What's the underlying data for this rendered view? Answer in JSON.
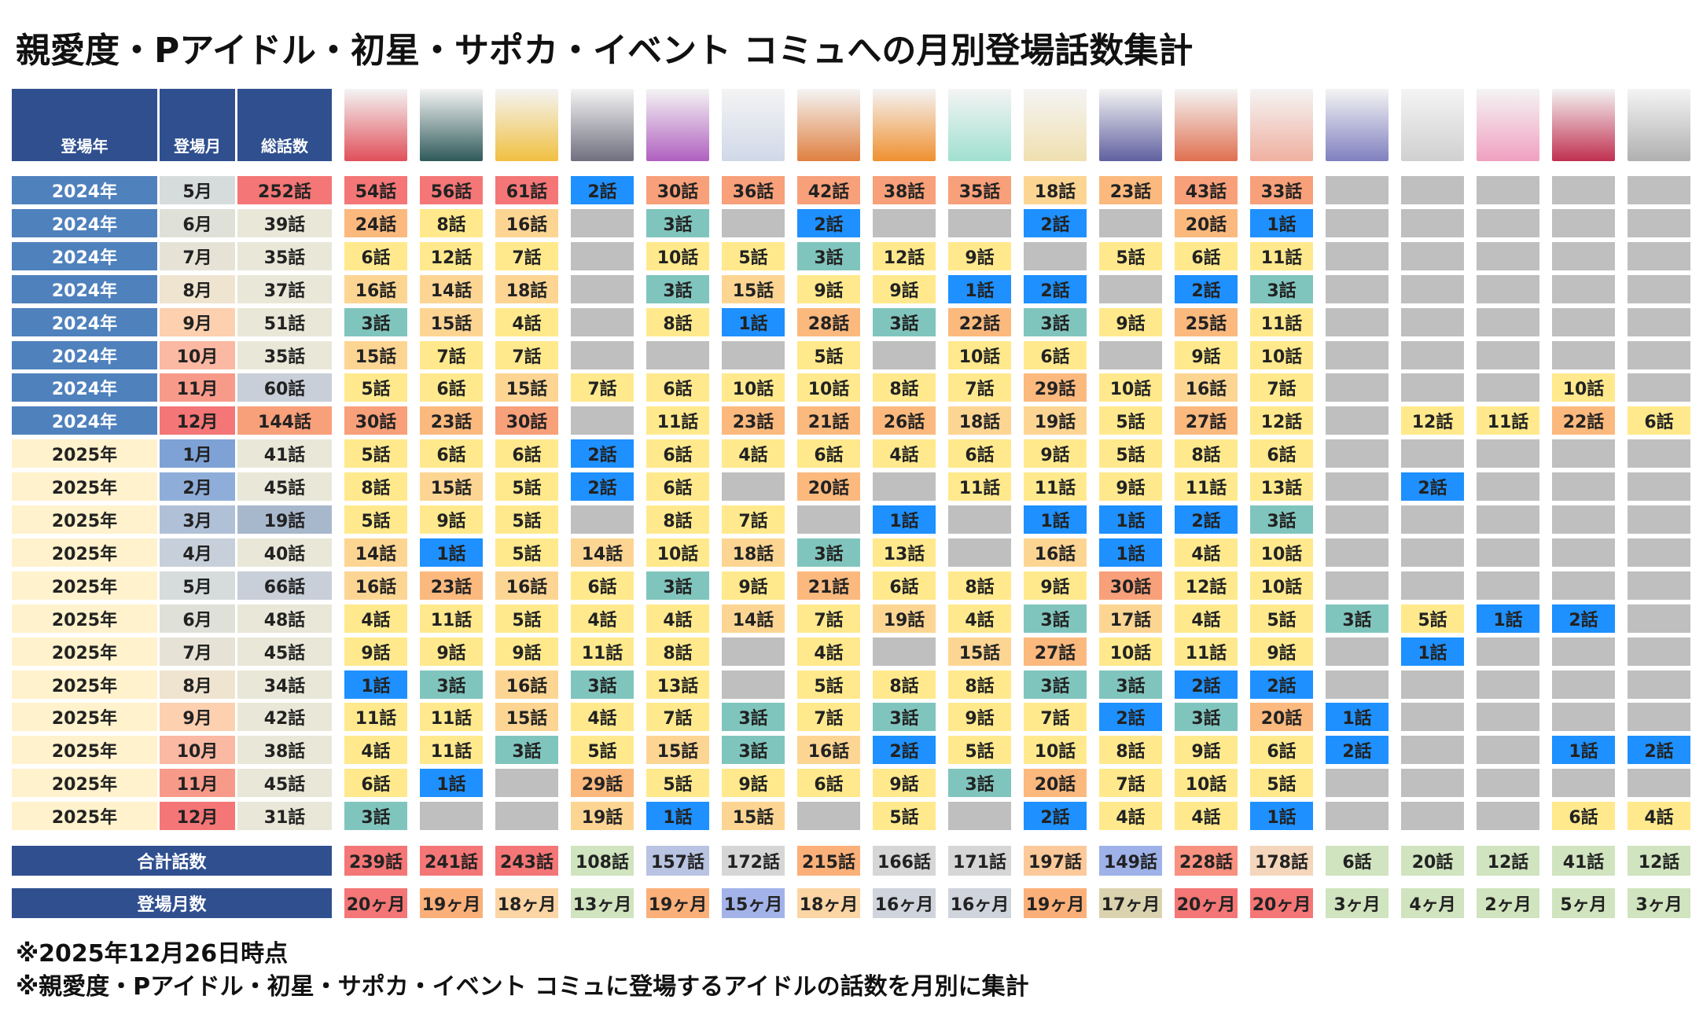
{
  "header": {
    "title": "親愛度・Pアイドル・初星・サポカ・イベント コミュへの月別登場話数集計"
  },
  "table": {
    "columns": [
      "登場年",
      "登場月",
      "総話数"
    ],
    "rows": [
      [
        "2024年",
        "5月",
        "252話",
        [
          "54話",
          "56話",
          "61話",
          "2話",
          "30話",
          "36話",
          "42話",
          "38話",
          "35話",
          "18話",
          "23話",
          "43話",
          "33話",
          null,
          null,
          null,
          null,
          null
        ]
      ],
      [
        "2024年",
        "6月",
        "39話",
        [
          "24話",
          "8話",
          "16話",
          null,
          "3話",
          null,
          "2話",
          null,
          null,
          "2話",
          null,
          "20話",
          "1話",
          null,
          null,
          null,
          null,
          null
        ]
      ],
      [
        "2024年",
        "7月",
        "35話",
        [
          "6話",
          "12話",
          "7話",
          null,
          "10話",
          "5話",
          "3話",
          "12話",
          "9話",
          null,
          "5話",
          "6話",
          "11話",
          null,
          null,
          null,
          null,
          null
        ]
      ],
      [
        "2024年",
        "8月",
        "37話",
        [
          "16話",
          "14話",
          "18話",
          null,
          "3話",
          "15話",
          "9話",
          "9話",
          "1話",
          "2話",
          null,
          "2話",
          "3話",
          null,
          null,
          null,
          null,
          null
        ]
      ],
      [
        "2024年",
        "9月",
        "51話",
        [
          "3話",
          "15話",
          "4話",
          null,
          "8話",
          "1話",
          "28話",
          "3話",
          "22話",
          "3話",
          "9話",
          "25話",
          "11話",
          null,
          null,
          null,
          null,
          null
        ]
      ],
      [
        "2024年",
        "10月",
        "35話",
        [
          "15話",
          "7話",
          "7話",
          null,
          null,
          null,
          "5話",
          null,
          "10話",
          "6話",
          null,
          "9話",
          "10話",
          null,
          null,
          null,
          null,
          null
        ]
      ],
      [
        "2024年",
        "11月",
        "60話",
        [
          "5話",
          "6話",
          "15話",
          "7話",
          "6話",
          "10話",
          "10話",
          "8話",
          "7話",
          "29話",
          "10話",
          "16話",
          "7話",
          null,
          null,
          null,
          "10話",
          null
        ]
      ],
      [
        "2024年",
        "12月",
        "144話",
        [
          "30話",
          "23話",
          "30話",
          null,
          "11話",
          "23話",
          "21話",
          "26話",
          "18話",
          "19話",
          "5話",
          "27話",
          "12話",
          null,
          "12話",
          "11話",
          "22話",
          "6話"
        ]
      ],
      [
        "2025年",
        "1月",
        "41話",
        [
          "5話",
          "6話",
          "6話",
          "2話",
          "6話",
          "4話",
          "6話",
          "4話",
          "6話",
          "9話",
          "5話",
          "8話",
          "6話",
          null,
          null,
          null,
          null,
          null
        ]
      ],
      [
        "2025年",
        "2月",
        "45話",
        [
          "8話",
          "15話",
          "5話",
          "2話",
          "6話",
          null,
          "20話",
          null,
          "11話",
          "11話",
          "9話",
          "11話",
          "13話",
          null,
          "2話",
          null,
          null,
          null
        ]
      ],
      [
        "2025年",
        "3月",
        "19話",
        [
          "5話",
          "9話",
          "5話",
          null,
          "8話",
          "7話",
          null,
          "1話",
          null,
          "1話",
          "1話",
          "2話",
          "3話",
          null,
          null,
          null,
          null,
          null
        ]
      ],
      [
        "2025年",
        "4月",
        "40話",
        [
          "14話",
          "1話",
          "5話",
          "14話",
          "10話",
          "18話",
          "3話",
          "13話",
          null,
          "16話",
          "1話",
          "4話",
          "10話",
          null,
          null,
          null,
          null,
          null
        ]
      ],
      [
        "2025年",
        "5月",
        "66話",
        [
          "16話",
          "23話",
          "16話",
          "6話",
          "3話",
          "9話",
          "21話",
          "6話",
          "8話",
          "9話",
          "30話",
          "12話",
          "10話",
          null,
          null,
          null,
          null,
          null
        ]
      ],
      [
        "2025年",
        "6月",
        "48話",
        [
          "4話",
          "11話",
          "5話",
          "4話",
          "4話",
          "14話",
          "7話",
          "19話",
          "4話",
          "3話",
          "17話",
          "4話",
          "5話",
          "3話",
          "5話",
          "1話",
          "2話",
          null
        ]
      ],
      [
        "2025年",
        "7月",
        "45話",
        [
          "9話",
          "9話",
          "9話",
          "11話",
          "8話",
          null,
          "4話",
          null,
          "15話",
          "27話",
          "10話",
          "11話",
          "9話",
          null,
          "1話",
          null,
          null,
          null
        ]
      ],
      [
        "2025年",
        "8月",
        "34話",
        [
          "1話",
          "3話",
          "16話",
          "3話",
          "13話",
          null,
          "5話",
          "8話",
          "8話",
          "3話",
          "3話",
          "2話",
          "2話",
          null,
          null,
          null,
          null,
          null
        ]
      ],
      [
        "2025年",
        "9月",
        "42話",
        [
          "11話",
          "11話",
          "15話",
          "4話",
          "7話",
          "3話",
          "7話",
          "3話",
          "9話",
          "7話",
          "2話",
          "3話",
          "20話",
          "1話",
          null,
          null,
          null,
          null
        ]
      ],
      [
        "2025年",
        "10月",
        "38話",
        [
          "4話",
          "11話",
          "3話",
          "5話",
          "15話",
          "3話",
          "16話",
          "2話",
          "5話",
          "10話",
          "8話",
          "9話",
          "6話",
          "2話",
          null,
          null,
          "1話",
          "2話"
        ]
      ],
      [
        "2025年",
        "11月",
        "45話",
        [
          "6話",
          "1話",
          null,
          "29話",
          "5話",
          "9話",
          "6話",
          "9話",
          "3話",
          "20話",
          "7話",
          "10話",
          "5話",
          null,
          null,
          null,
          null,
          null
        ]
      ],
      [
        "2025年",
        "12月",
        "31話",
        [
          "3話",
          null,
          null,
          "19話",
          "1話",
          "15話",
          null,
          "5話",
          null,
          "2話",
          "4話",
          "4話",
          "1話",
          null,
          null,
          null,
          "6話",
          "4話"
        ]
      ]
    ],
    "totals": {
      "label": "合計話数",
      "values": [
        "239話",
        "241話",
        "243話",
        "108話",
        "157話",
        "172話",
        "215話",
        "166話",
        "171話",
        "197話",
        "149話",
        "228話",
        "178話",
        "6話",
        "20話",
        "12話",
        "41話",
        "12話"
      ]
    },
    "months": {
      "label": "登場月数",
      "values": [
        "20ヶ月",
        "19ヶ月",
        "18ヶ月",
        "13ヶ月",
        "19ヶ月",
        "15ヶ月",
        "18ヶ月",
        "16ヶ月",
        "16ヶ月",
        "19ヶ月",
        "17ヶ月",
        "20ヶ月",
        "20ヶ月",
        "3ヶ月",
        "4ヶ月",
        "2ヶ月",
        "5ヶ月",
        "3ヶ月"
      ]
    }
  },
  "footer": {
    "notes": [
      "※2025年12月26日時点",
      "※親愛度・Pアイドル・初星・サポカ・イベント コミュに登場するアイドルの話数を月別に集計"
    ]
  }
}
